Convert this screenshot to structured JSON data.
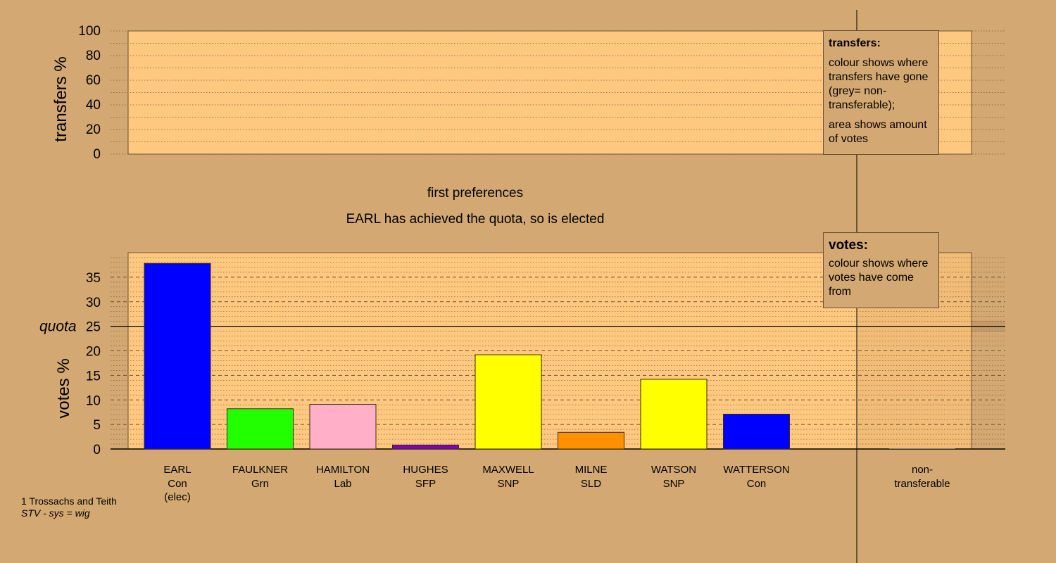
{
  "chart_data": [
    {
      "type": "bar",
      "panel": "transfers",
      "ylabel": "transfers %",
      "ylim": [
        0,
        100
      ],
      "yticks": [
        0,
        20,
        40,
        60,
        80,
        100
      ],
      "categories": [],
      "values": []
    },
    {
      "type": "bar",
      "panel": "votes",
      "subtitle": "first preferences",
      "title": "EARL has achieved the quota, so is elected",
      "ylabel": "votes %",
      "ylim": [
        0,
        40
      ],
      "yticks": [
        0,
        5,
        10,
        15,
        20,
        25,
        30,
        35
      ],
      "quota": {
        "label": "quota",
        "value": 25
      },
      "categories": [
        {
          "name": "EARL",
          "party": "Con",
          "note": "(elec)",
          "value": 37.8,
          "color": "#0000ff"
        },
        {
          "name": "FAULKNER",
          "party": "Grn",
          "note": "",
          "value": 8.2,
          "color": "#22ff00"
        },
        {
          "name": "HAMILTON",
          "party": "Lab",
          "note": "",
          "value": 9.1,
          "color": "#ffb0c8"
        },
        {
          "name": "HUGHES",
          "party": "SFP",
          "note": "",
          "value": 0.8,
          "color": "#8000c0"
        },
        {
          "name": "MAXWELL",
          "party": "SNP",
          "note": "",
          "value": 19.2,
          "color": "#ffff00"
        },
        {
          "name": "MILNE",
          "party": "SLD",
          "note": "",
          "value": 3.4,
          "color": "#ff9000"
        },
        {
          "name": "WATSON",
          "party": "SNP",
          "note": "",
          "value": 14.2,
          "color": "#ffff00"
        },
        {
          "name": "WATTERSON",
          "party": "Con",
          "note": "",
          "value": 7.1,
          "color": "#0000ff"
        }
      ],
      "nontransferable": {
        "line1": "non-",
        "line2": "transferable",
        "value": 0
      }
    }
  ],
  "legend_transfers": {
    "title": "transfers:",
    "text1": "colour shows where transfers have gone (grey= non-transferable);",
    "text2": "area shows amount of votes"
  },
  "legend_votes": {
    "title": "votes:",
    "text1": "colour shows where votes have come from"
  },
  "footer": {
    "line1": "1 Trossachs and Teith",
    "line2": "STV - sys = wig"
  },
  "colors": {
    "background": "#d4a872",
    "plot_area": "#ffc880"
  }
}
